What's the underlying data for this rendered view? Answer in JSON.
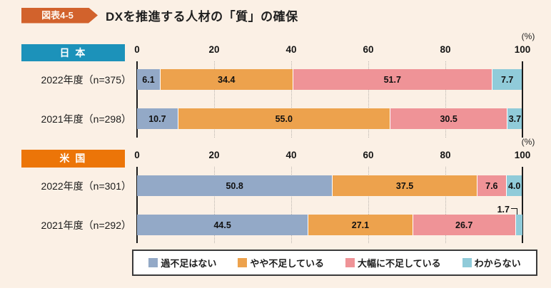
{
  "page": {
    "figure_label": "図表4-5",
    "title": "DXを推進する人材の「質」の確保",
    "percent_label": "(%)"
  },
  "colors": {
    "background": "#FBF0E5",
    "figure_badge": "#D2622C",
    "japan_header": "#1C92BA",
    "us_header": "#EC7508",
    "segments": [
      "#93A9C7",
      "#EDA24D",
      "#EF9397",
      "#90CBD9"
    ],
    "axis_line": "#1B1B1B"
  },
  "legend": {
    "items": [
      {
        "label": "過不足はない",
        "color": "#93A9C7"
      },
      {
        "label": "やや不足している",
        "color": "#EDA24D"
      },
      {
        "label": "大幅に不足している",
        "color": "#EF9397"
      },
      {
        "label": "わからない",
        "color": "#90CBD9"
      }
    ]
  },
  "chart_data": {
    "type": "bar",
    "orientation": "horizontal-stacked",
    "title": "DXを推進する人材の「質」の確保",
    "xlabel": "(%)",
    "xlim": [
      0,
      100
    ],
    "ticks": [
      0,
      20,
      40,
      60,
      80,
      100
    ],
    "grid": "dotted-vertical",
    "legend_position": "bottom",
    "series_names": [
      "過不足はない",
      "やや不足している",
      "大幅に不足している",
      "わからない"
    ],
    "groups": [
      {
        "name": "日 本",
        "rows": [
          {
            "label": "2022年度（n=375）",
            "values": [
              6.1,
              34.4,
              51.7,
              7.7
            ]
          },
          {
            "label": "2021年度（n=298）",
            "values": [
              10.7,
              55.0,
              30.5,
              3.7
            ]
          }
        ]
      },
      {
        "name": "米 国",
        "rows": [
          {
            "label": "2022年度（n=301）",
            "values": [
              50.8,
              37.5,
              7.6,
              4.0
            ]
          },
          {
            "label": "2021年度（n=292）",
            "values": [
              44.5,
              27.1,
              26.7,
              1.7
            ],
            "callout_series": 3
          }
        ]
      }
    ]
  }
}
